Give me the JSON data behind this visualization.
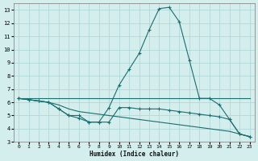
{
  "xlabel": "Humidex (Indice chaleur)",
  "bg_color": "#d4eeee",
  "grid_color": "#b0d8d8",
  "line_color": "#1a6e6e",
  "xlim": [
    -0.5,
    23.5
  ],
  "ylim": [
    3,
    13.5
  ],
  "xticks": [
    0,
    1,
    2,
    3,
    4,
    5,
    6,
    7,
    8,
    9,
    10,
    11,
    12,
    13,
    14,
    15,
    16,
    17,
    18,
    19,
    20,
    21,
    22,
    23
  ],
  "yticks": [
    3,
    4,
    5,
    6,
    7,
    8,
    9,
    10,
    11,
    12,
    13
  ],
  "line1_x": [
    0,
    1,
    2,
    3,
    4,
    5,
    6,
    7,
    8,
    9,
    10,
    11,
    12,
    13,
    14,
    15,
    16,
    17,
    18,
    19,
    20,
    21,
    22,
    23
  ],
  "line1_y": [
    6.3,
    6.3,
    6.3,
    6.3,
    6.3,
    6.3,
    6.3,
    6.3,
    6.3,
    6.3,
    6.3,
    6.3,
    6.3,
    6.3,
    6.3,
    6.3,
    6.3,
    6.3,
    6.3,
    6.3,
    6.3,
    6.3,
    6.3,
    6.3
  ],
  "line2_x": [
    0,
    1,
    2,
    3,
    4,
    5,
    6,
    7,
    8,
    9,
    10,
    11,
    12,
    13,
    14,
    15,
    16,
    17,
    18,
    19,
    20,
    21,
    22,
    23
  ],
  "line2_y": [
    6.3,
    6.2,
    6.1,
    6.0,
    5.8,
    5.5,
    5.3,
    5.2,
    5.1,
    5.0,
    4.9,
    4.8,
    4.7,
    4.6,
    4.5,
    4.4,
    4.3,
    4.2,
    4.1,
    4.0,
    3.9,
    3.8,
    3.6,
    3.4
  ],
  "line3_x": [
    0,
    1,
    2,
    3,
    4,
    5,
    6,
    7,
    8,
    9,
    10,
    11,
    12,
    13,
    14,
    15,
    16,
    17,
    18,
    19,
    20,
    21,
    22,
    23
  ],
  "line3_y": [
    6.3,
    6.2,
    6.1,
    6.0,
    5.5,
    5.0,
    5.0,
    4.5,
    4.5,
    4.5,
    5.6,
    5.6,
    5.5,
    5.5,
    5.5,
    5.4,
    5.3,
    5.2,
    5.1,
    5.0,
    4.9,
    4.7,
    3.6,
    3.4
  ],
  "line4_x": [
    0,
    1,
    2,
    3,
    4,
    5,
    6,
    7,
    8,
    9,
    10,
    11,
    12,
    13,
    14,
    15,
    16,
    17,
    18,
    19,
    20,
    21,
    22,
    23
  ],
  "line4_y": [
    6.3,
    6.2,
    6.1,
    6.0,
    5.5,
    5.0,
    4.8,
    4.5,
    4.5,
    5.6,
    7.3,
    8.5,
    9.7,
    11.5,
    13.1,
    13.2,
    12.1,
    9.2,
    6.3,
    6.3,
    5.8,
    4.7,
    3.6,
    3.4
  ]
}
